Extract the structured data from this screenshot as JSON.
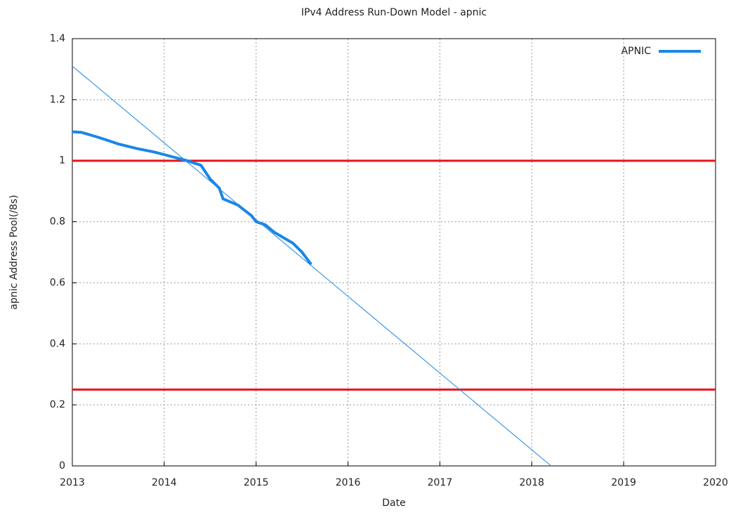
{
  "chart_data": {
    "type": "line",
    "title": "IPv4 Address Run-Down Model - apnic",
    "x_label": "Date",
    "y_label": "apnic Address Pool(/8s)",
    "xlim": [
      2013,
      2020
    ],
    "xticks": [
      2013,
      2014,
      2015,
      2016,
      2017,
      2018,
      2019,
      2020
    ],
    "ylim": [
      0,
      1.4
    ],
    "yticks": [
      0,
      0.2,
      0.4,
      0.6,
      0.8,
      1,
      1.2,
      1.4
    ],
    "grid": true,
    "legend": "top-right",
    "series": [
      {
        "name": "APNIC",
        "color": "#1a86e8",
        "x": [
          2013.0,
          2013.1,
          2013.3,
          2013.5,
          2013.7,
          2013.9,
          2014.1,
          2014.25,
          2014.4,
          2014.5,
          2014.6,
          2014.64,
          2014.8,
          2014.95,
          2015.0,
          2015.1,
          2015.2,
          2015.4,
          2015.5,
          2015.6
        ],
        "values": [
          1.095,
          1.093,
          1.075,
          1.055,
          1.04,
          1.028,
          1.012,
          1.0,
          0.985,
          0.94,
          0.91,
          0.875,
          0.855,
          0.82,
          0.8,
          0.79,
          0.765,
          0.73,
          0.7,
          0.66
        ]
      },
      {
        "color": "#1a86e8",
        "x": [
          2013,
          2018.21
        ],
        "values": [
          1.31,
          0
        ]
      }
    ],
    "hlines": [
      1,
      0.25
    ],
    "hline_color": "#e8141a"
  }
}
